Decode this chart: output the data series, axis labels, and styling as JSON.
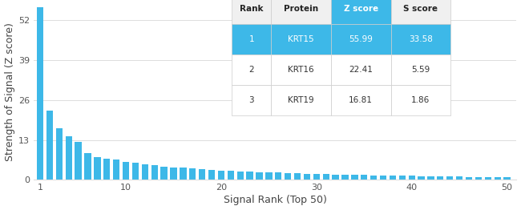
{
  "xlabel": "Signal Rank (Top 50)",
  "ylabel": "Strength of Signal (Z score)",
  "bar_color": "#3db8e8",
  "yticks": [
    0,
    13,
    26,
    39,
    52
  ],
  "xticks": [
    1,
    10,
    20,
    30,
    40,
    50
  ],
  "ylim": [
    0,
    57
  ],
  "xlim": [
    0.3,
    51
  ],
  "n_bars": 50,
  "z_scores": [
    55.99,
    22.41,
    16.81,
    14.2,
    12.3,
    8.8,
    7.5,
    7.0,
    6.5,
    5.9,
    5.5,
    5.0,
    4.7,
    4.4,
    4.1,
    3.9,
    3.7,
    3.5,
    3.3,
    3.1,
    2.9,
    2.8,
    2.65,
    2.55,
    2.45,
    2.35,
    2.25,
    2.15,
    2.05,
    1.95,
    1.85,
    1.75,
    1.65,
    1.6,
    1.55,
    1.5,
    1.45,
    1.4,
    1.35,
    1.3,
    1.25,
    1.2,
    1.15,
    1.1,
    1.05,
    1.0,
    0.95,
    0.9,
    0.85,
    0.8
  ],
  "table_headers": [
    "Rank",
    "Protein",
    "Z score",
    "S score"
  ],
  "table_rows": [
    [
      "1",
      "KRT15",
      "55.99",
      "33.58"
    ],
    [
      "2",
      "KRT16",
      "22.41",
      "5.59"
    ],
    [
      "3",
      "KRT19",
      "16.81",
      "1.86"
    ]
  ],
  "header_bg_default": "#f0f0f0",
  "header_bg_zscore": "#3db8e8",
  "header_fg_default": "#222222",
  "header_fg_zscore": "#ffffff",
  "row1_bg": "#3db8e8",
  "row1_fg": "#ffffff",
  "row_other_bg": "#ffffff",
  "row_other_fg": "#333333",
  "border_color": "#cccccc",
  "background_color": "#ffffff",
  "grid_color": "#dddddd"
}
